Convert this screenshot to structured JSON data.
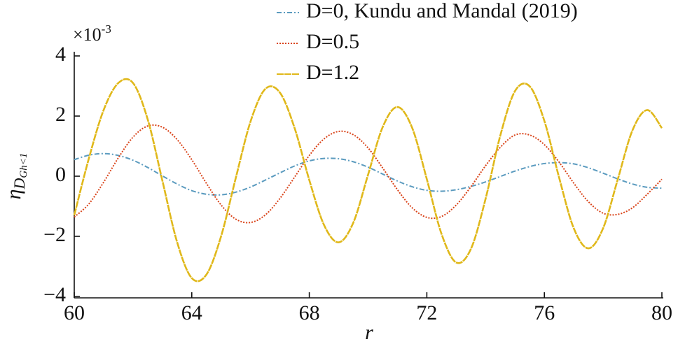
{
  "chart_data": {
    "type": "line",
    "xlabel": "r",
    "ylabel": {
      "symbol": "η",
      "subscript": "D",
      "subsubscript": "Gh<1"
    },
    "multiplier": "×10",
    "multiplier_exponent": "-3",
    "xlim": [
      60,
      80
    ],
    "ylim": [
      -4,
      4
    ],
    "xticks": [
      60,
      64,
      68,
      72,
      76,
      80
    ],
    "yticks": [
      {
        "value": -4,
        "label": "−4"
      },
      {
        "value": -2,
        "label": "−2"
      },
      0,
      2,
      4
    ],
    "legend": "upper right",
    "x": [
      60,
      60.5,
      61,
      61.5,
      62,
      62.5,
      63,
      63.5,
      64,
      64.5,
      65,
      65.5,
      66,
      66.5,
      67,
      67.5,
      68,
      68.5,
      69,
      69.5,
      70,
      70.5,
      71,
      71.5,
      72,
      72.5,
      73,
      73.5,
      74,
      74.5,
      75,
      75.5,
      76,
      76.5,
      77,
      77.5,
      78,
      78.5,
      79,
      79.5,
      80
    ],
    "series": [
      {
        "name": "D=0, Kundu and Mandal (2019)",
        "color": "#5b9bbf",
        "style": "dashdot",
        "values": [
          0.55,
          0.7,
          0.75,
          0.69,
          0.53,
          0.29,
          0.01,
          -0.26,
          -0.48,
          -0.6,
          -0.62,
          -0.53,
          -0.36,
          -0.13,
          0.11,
          0.34,
          0.51,
          0.59,
          0.58,
          0.48,
          0.3,
          0.07,
          -0.16,
          -0.35,
          -0.47,
          -0.5,
          -0.45,
          -0.34,
          -0.19,
          -0.01,
          0.17,
          0.32,
          0.42,
          0.45,
          0.41,
          0.28,
          0.1,
          -0.09,
          -0.26,
          -0.37,
          -0.4
        ]
      },
      {
        "name": "D=0.5",
        "color": "#d9441a",
        "style": "dotted",
        "values": [
          -1.36,
          -0.92,
          -0.2,
          0.61,
          1.3,
          1.67,
          1.63,
          1.22,
          0.55,
          -0.24,
          -0.96,
          -1.43,
          -1.54,
          -1.29,
          -0.74,
          -0.03,
          0.69,
          1.24,
          1.49,
          1.38,
          0.94,
          0.27,
          -0.45,
          -1.05,
          -1.37,
          -1.34,
          -0.96,
          -0.35,
          0.35,
          0.96,
          1.37,
          1.37,
          1.05,
          0.47,
          -0.23,
          -0.85,
          -1.23,
          -1.27,
          -1.05,
          -0.6,
          -0.1
        ]
      },
      {
        "name": "D=1.2",
        "color": "#e0b81a",
        "style": "solid",
        "values": [
          -1.3,
          0.6,
          2.2,
          3.1,
          3.1,
          1.89,
          -0.15,
          -2.19,
          -3.39,
          -3.27,
          -1.99,
          -0.05,
          1.82,
          2.9,
          2.78,
          1.6,
          -0.13,
          -1.62,
          -2.2,
          -1.54,
          0.05,
          1.64,
          2.3,
          1.61,
          -0.1,
          -1.92,
          -2.87,
          -2.42,
          -0.75,
          1.35,
          2.83,
          2.99,
          1.84,
          -0.04,
          -1.73,
          -2.4,
          -1.73,
          -0.1,
          1.53,
          2.2,
          1.6
        ]
      }
    ]
  }
}
